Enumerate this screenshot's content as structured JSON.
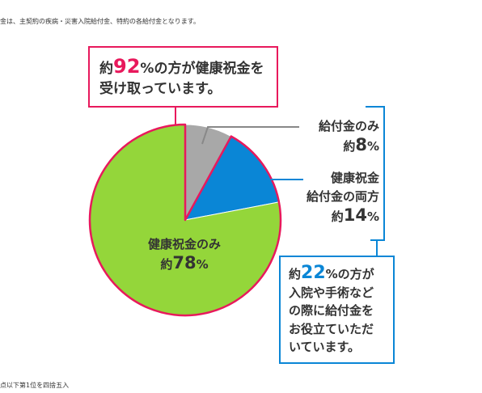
{
  "notes": {
    "top": "金は、主契約の疾病・災害入院給付金、特約の各給付金となります。",
    "bottom": "点以下第1位を四捨五入"
  },
  "callouts": {
    "pink": {
      "prefix": "約",
      "value": "92",
      "unit": "%",
      "line1_rest": "の方が健康祝金を",
      "line2": "受け取っています。"
    },
    "blue": {
      "prefix": "約",
      "value": "22",
      "unit": "%",
      "line1_rest": "の方が",
      "line2": "入院や手術など",
      "line3": "の際に給付金を",
      "line4": "お役立ていただ",
      "line5": "いています。"
    }
  },
  "chart_data": {
    "type": "pie",
    "slices": [
      {
        "key": "gray",
        "label_lines": [
          "給付金のみ"
        ],
        "prefix": "約",
        "value": 8,
        "unit": "%",
        "color": "#a8a8a8"
      },
      {
        "key": "blue",
        "label_lines": [
          "健康祝金",
          "給付金の両方"
        ],
        "prefix": "約",
        "value": 14,
        "unit": "%",
        "color": "#0a86d6"
      },
      {
        "key": "green",
        "label_lines": [
          "健康祝金のみ"
        ],
        "prefix": "約",
        "value": 78,
        "unit": "%",
        "color": "#94d63a"
      }
    ],
    "highlight_colors": {
      "pink": "#e8195c",
      "blue": "#0a86d6"
    }
  }
}
